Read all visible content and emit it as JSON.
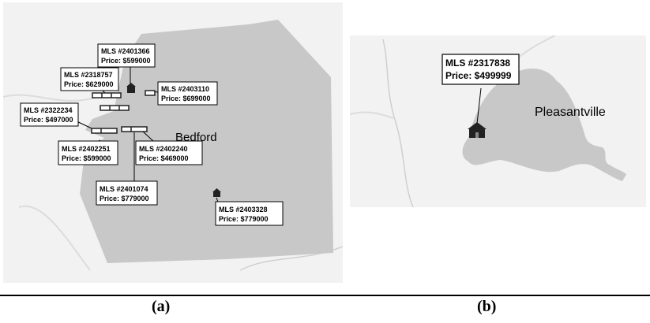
{
  "maps": [
    {
      "caption": "(a)",
      "town": "Bedford",
      "listings": [
        {
          "mls": "MLS #2401366",
          "price": "Price:  $599000"
        },
        {
          "mls": "MLS #2318757",
          "price": "Price:  $629000"
        },
        {
          "mls": "MLS #2403110",
          "price": "Price:  $699000"
        },
        {
          "mls": "MLS #2322234",
          "price": "Price:  $497000"
        },
        {
          "mls": "MLS #2402251",
          "price": "Price:  $599000"
        },
        {
          "mls": "MLS #2402240",
          "price": "Price:  $469000"
        },
        {
          "mls": "MLS #2401074",
          "price": "Price:  $779000"
        },
        {
          "mls": "MLS #2403328",
          "price": "Price:  $779000"
        }
      ]
    },
    {
      "caption": "(b)",
      "town": "Pleasantville",
      "listings": [
        {
          "mls": "MLS #2317838",
          "price": "Price:  $499999"
        }
      ]
    }
  ],
  "colors": {
    "background": "#f2f2f2",
    "town_region": "#c8c8c8",
    "roads": "#dcdcdc",
    "house_icon": "#222222"
  },
  "icons": {
    "listing_marker": "house-icon"
  }
}
